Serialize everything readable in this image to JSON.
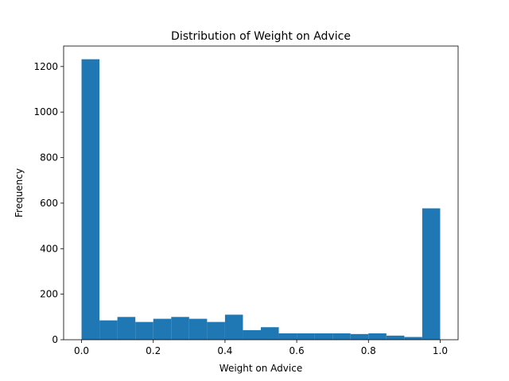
{
  "chart_data": {
    "type": "bar",
    "title": "Distribution of Weight on Advice",
    "xlabel": "Weight on Advice",
    "ylabel": "Frequency",
    "bin_edges": [
      0.0,
      0.05,
      0.1,
      0.15,
      0.2,
      0.25,
      0.3,
      0.35,
      0.4,
      0.45,
      0.5,
      0.55,
      0.6,
      0.65,
      0.7,
      0.75,
      0.8,
      0.85,
      0.9,
      0.95,
      1.0
    ],
    "values": [
      1232,
      85,
      100,
      78,
      92,
      100,
      92,
      78,
      110,
      42,
      55,
      28,
      28,
      28,
      28,
      25,
      28,
      18,
      12,
      577
    ],
    "xlim": [
      -0.05,
      1.05
    ],
    "ylim": [
      0,
      1290
    ],
    "xticks": [
      0.0,
      0.2,
      0.4,
      0.6,
      0.8,
      1.0
    ],
    "xtick_labels": [
      "0.0",
      "0.2",
      "0.4",
      "0.6",
      "0.8",
      "1.0"
    ],
    "yticks": [
      0,
      200,
      400,
      600,
      800,
      1000,
      1200
    ],
    "ytick_labels": [
      "0",
      "200",
      "400",
      "600",
      "800",
      "1000",
      "1200"
    ],
    "bar_color": "#1f77b4",
    "grid": false,
    "legend": "none"
  }
}
